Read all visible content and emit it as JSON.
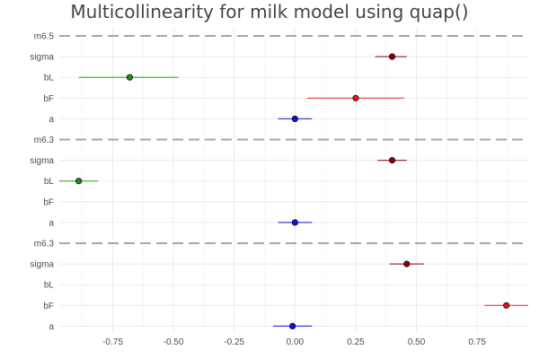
{
  "chart_data": {
    "type": "scatter",
    "title": "Multicollinearity for milk model using quap()",
    "xlabel": "",
    "ylabel": "",
    "xlim": [
      -0.97,
      0.96
    ],
    "x_ticks": [
      -0.75,
      -0.5,
      -0.25,
      0.0,
      0.25,
      0.5,
      0.75
    ],
    "x_tick_labels": [
      "-0.75",
      "-0.50",
      "-0.25",
      "0.00",
      "0.25",
      "0.50",
      "0.75"
    ],
    "grid": true,
    "legend": "none",
    "colors": {
      "sigma": "#8b0000",
      "bL": "#228b22",
      "bF": "#e8101a",
      "a": "#1010e0",
      "separator": "#a6a6a6",
      "grid": "#ebebeb"
    },
    "rows": [
      {
        "label": "m6.5",
        "type": "separator"
      },
      {
        "label": "sigma",
        "param": "sigma",
        "mean": 0.4,
        "lower": 0.33,
        "upper": 0.46
      },
      {
        "label": "bL",
        "param": "bL",
        "mean": -0.68,
        "lower": -0.89,
        "upper": -0.48
      },
      {
        "label": "bF",
        "param": "bF",
        "mean": 0.25,
        "lower": 0.05,
        "upper": 0.45
      },
      {
        "label": "a",
        "param": "a",
        "mean": 0.0,
        "lower": -0.07,
        "upper": 0.07
      },
      {
        "label": "m6.3",
        "type": "separator"
      },
      {
        "label": "sigma",
        "param": "sigma",
        "mean": 0.4,
        "lower": 0.34,
        "upper": 0.46
      },
      {
        "label": "bL",
        "param": "bL",
        "mean": -0.89,
        "lower": -0.97,
        "upper": -0.81
      },
      {
        "label": "bF",
        "param": "bF",
        "mean": null,
        "lower": null,
        "upper": null
      },
      {
        "label": "a",
        "param": "a",
        "mean": 0.0,
        "lower": -0.07,
        "upper": 0.07
      },
      {
        "label": "m6.3",
        "type": "separator"
      },
      {
        "label": "sigma",
        "param": "sigma",
        "mean": 0.46,
        "lower": 0.39,
        "upper": 0.53
      },
      {
        "label": "bL",
        "param": "bL",
        "mean": null,
        "lower": null,
        "upper": null
      },
      {
        "label": "bF",
        "param": "bF",
        "mean": 0.87,
        "lower": 0.78,
        "upper": 0.96
      },
      {
        "label": "a",
        "param": "a",
        "mean": -0.01,
        "lower": -0.09,
        "upper": 0.07
      }
    ]
  }
}
